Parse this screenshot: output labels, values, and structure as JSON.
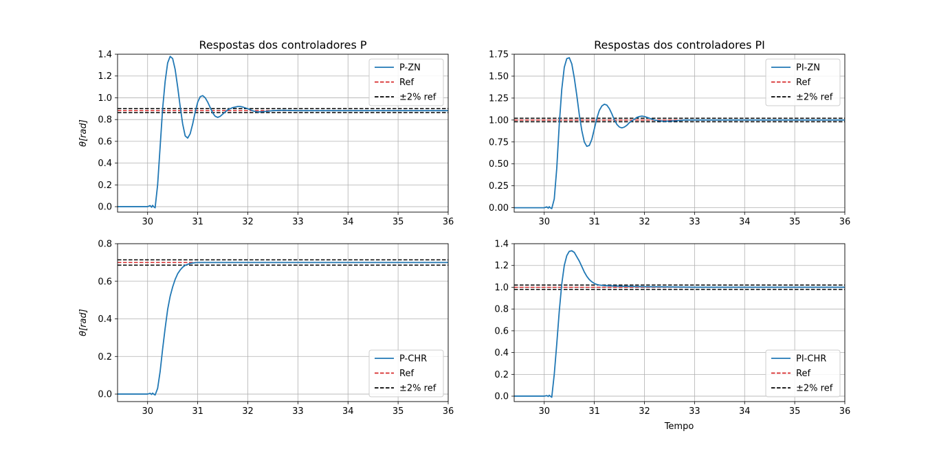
{
  "figure": {
    "xlabel": "Tempo"
  },
  "chart_data": [
    {
      "type": "line",
      "title": "Respostas dos controladores P",
      "xlabel": "",
      "ylabel": "θ[rad]",
      "xlim": [
        29.4,
        36
      ],
      "ylim": [
        -0.05,
        1.4
      ],
      "xticks": [
        "30",
        "31",
        "32",
        "33",
        "34",
        "35",
        "36"
      ],
      "yticks": [
        "0.0",
        "0.2",
        "0.4",
        "0.6",
        "0.8",
        "1.0",
        "1.2",
        "1.4"
      ],
      "grid": true,
      "legend_position": "top-right",
      "legend": [
        "P-ZN",
        "Ref",
        "±2% ref"
      ],
      "reference": 0.882,
      "band": [
        0.864,
        0.9
      ],
      "series": [
        {
          "name": "P-ZN",
          "color": "#1f77b4",
          "x": [
            29.4,
            30.0,
            30.05,
            30.08,
            30.1,
            30.12,
            30.15,
            30.2,
            30.25,
            30.3,
            30.35,
            30.4,
            30.45,
            30.5,
            30.55,
            30.6,
            30.65,
            30.7,
            30.75,
            30.8,
            30.85,
            30.9,
            30.95,
            31.0,
            31.05,
            31.1,
            31.15,
            31.2,
            31.25,
            31.3,
            31.35,
            31.4,
            31.45,
            31.5,
            31.55,
            31.6,
            31.7,
            31.8,
            31.85,
            31.9,
            32.0,
            32.1,
            32.2,
            32.3,
            32.5,
            32.7,
            33.0,
            34.0,
            36.0
          ],
          "y": [
            0.0,
            0.0,
            0.01,
            -0.005,
            0.012,
            0.0,
            -0.01,
            0.2,
            0.55,
            0.9,
            1.15,
            1.32,
            1.38,
            1.36,
            1.26,
            1.1,
            0.92,
            0.76,
            0.65,
            0.63,
            0.67,
            0.76,
            0.87,
            0.96,
            1.01,
            1.02,
            1.0,
            0.96,
            0.91,
            0.86,
            0.83,
            0.82,
            0.83,
            0.85,
            0.87,
            0.89,
            0.91,
            0.92,
            0.92,
            0.915,
            0.9,
            0.88,
            0.87,
            0.872,
            0.882,
            0.885,
            0.882,
            0.882,
            0.882
          ]
        }
      ]
    },
    {
      "type": "line",
      "title": "Respostas dos controladores PI",
      "xlabel": "",
      "ylabel": "",
      "xlim": [
        29.4,
        36
      ],
      "ylim": [
        -0.05,
        1.75
      ],
      "xticks": [
        "30",
        "31",
        "32",
        "33",
        "34",
        "35",
        "36"
      ],
      "yticks": [
        "0.00",
        "0.25",
        "0.50",
        "0.75",
        "1.00",
        "1.25",
        "1.50",
        "1.75"
      ],
      "grid": true,
      "legend_position": "top-right",
      "legend": [
        "PI-ZN",
        "Ref",
        "±2% ref"
      ],
      "reference": 1.0,
      "band": [
        0.98,
        1.02
      ],
      "series": [
        {
          "name": "PI-ZN",
          "color": "#1f77b4",
          "x": [
            29.4,
            30.0,
            30.05,
            30.08,
            30.1,
            30.12,
            30.15,
            30.2,
            30.25,
            30.3,
            30.35,
            30.4,
            30.45,
            30.5,
            30.55,
            30.6,
            30.65,
            30.7,
            30.75,
            30.8,
            30.85,
            30.9,
            30.95,
            31.0,
            31.05,
            31.1,
            31.15,
            31.2,
            31.25,
            31.3,
            31.35,
            31.4,
            31.45,
            31.5,
            31.55,
            31.6,
            31.65,
            31.7,
            31.75,
            31.8,
            31.85,
            31.9,
            31.95,
            32.0,
            32.1,
            32.2,
            32.3,
            32.4,
            32.6,
            32.8,
            33.0,
            34.0,
            36.0
          ],
          "y": [
            0.0,
            0.0,
            0.01,
            -0.005,
            0.012,
            0.0,
            -0.01,
            0.1,
            0.45,
            0.95,
            1.35,
            1.6,
            1.7,
            1.71,
            1.64,
            1.48,
            1.28,
            1.06,
            0.88,
            0.75,
            0.7,
            0.71,
            0.78,
            0.9,
            1.02,
            1.11,
            1.16,
            1.18,
            1.17,
            1.13,
            1.07,
            1.0,
            0.95,
            0.92,
            0.91,
            0.92,
            0.94,
            0.97,
            0.99,
            1.01,
            1.03,
            1.04,
            1.045,
            1.04,
            1.02,
            1.0,
            0.99,
            0.985,
            0.99,
            1.0,
            1.0,
            1.0,
            1.0
          ]
        }
      ]
    },
    {
      "type": "line",
      "title": "",
      "xlabel": "",
      "ylabel": "θ[rad]",
      "xlim": [
        29.4,
        36
      ],
      "ylim": [
        -0.04,
        0.8
      ],
      "xticks": [
        "30",
        "31",
        "32",
        "33",
        "34",
        "35",
        "36"
      ],
      "yticks": [
        "0.0",
        "0.2",
        "0.4",
        "0.6",
        "0.8"
      ],
      "grid": true,
      "legend_position": "bottom-right",
      "legend": [
        "P-CHR",
        "Ref",
        "±2% ref"
      ],
      "reference": 0.7,
      "band": [
        0.686,
        0.714
      ],
      "series": [
        {
          "name": "P-CHR",
          "color": "#1f77b4",
          "x": [
            29.4,
            30.0,
            30.05,
            30.08,
            30.1,
            30.12,
            30.15,
            30.2,
            30.25,
            30.3,
            30.35,
            30.4,
            30.45,
            30.5,
            30.55,
            30.6,
            30.65,
            30.7,
            30.75,
            30.8,
            30.85,
            30.9,
            30.95,
            31.0,
            31.1,
            31.2,
            32.0,
            36.0
          ],
          "y": [
            0.0,
            0.0,
            0.004,
            -0.002,
            0.005,
            0.0,
            -0.005,
            0.03,
            0.12,
            0.24,
            0.35,
            0.45,
            0.52,
            0.57,
            0.61,
            0.64,
            0.66,
            0.675,
            0.685,
            0.69,
            0.695,
            0.697,
            0.699,
            0.7,
            0.7,
            0.7,
            0.7,
            0.7
          ]
        }
      ]
    },
    {
      "type": "line",
      "title": "",
      "xlabel": "Tempo",
      "ylabel": "",
      "xlim": [
        29.4,
        36
      ],
      "ylim": [
        -0.05,
        1.4
      ],
      "xticks": [
        "30",
        "31",
        "32",
        "33",
        "34",
        "35",
        "36"
      ],
      "yticks": [
        "0.0",
        "0.2",
        "0.4",
        "0.6",
        "0.8",
        "1.0",
        "1.2",
        "1.4"
      ],
      "grid": true,
      "legend_position": "bottom-right",
      "legend": [
        "PI-CHR",
        "Ref",
        "±2% ref"
      ],
      "reference": 1.0,
      "band": [
        0.98,
        1.02
      ],
      "series": [
        {
          "name": "PI-CHR",
          "color": "#1f77b4",
          "x": [
            29.4,
            30.0,
            30.05,
            30.08,
            30.1,
            30.12,
            30.15,
            30.2,
            30.25,
            30.3,
            30.35,
            30.4,
            30.45,
            30.5,
            30.55,
            30.6,
            30.65,
            30.7,
            30.75,
            30.8,
            30.85,
            30.9,
            30.95,
            31.0,
            31.05,
            31.1,
            31.2,
            31.5,
            32.0,
            33.0,
            36.0
          ],
          "y": [
            0.0,
            0.0,
            0.005,
            -0.003,
            0.008,
            0.0,
            -0.01,
            0.2,
            0.48,
            0.78,
            1.03,
            1.2,
            1.29,
            1.33,
            1.335,
            1.32,
            1.28,
            1.24,
            1.19,
            1.14,
            1.1,
            1.07,
            1.05,
            1.035,
            1.025,
            1.02,
            1.015,
            1.01,
            1.005,
            1.0,
            1.0
          ]
        }
      ]
    }
  ]
}
